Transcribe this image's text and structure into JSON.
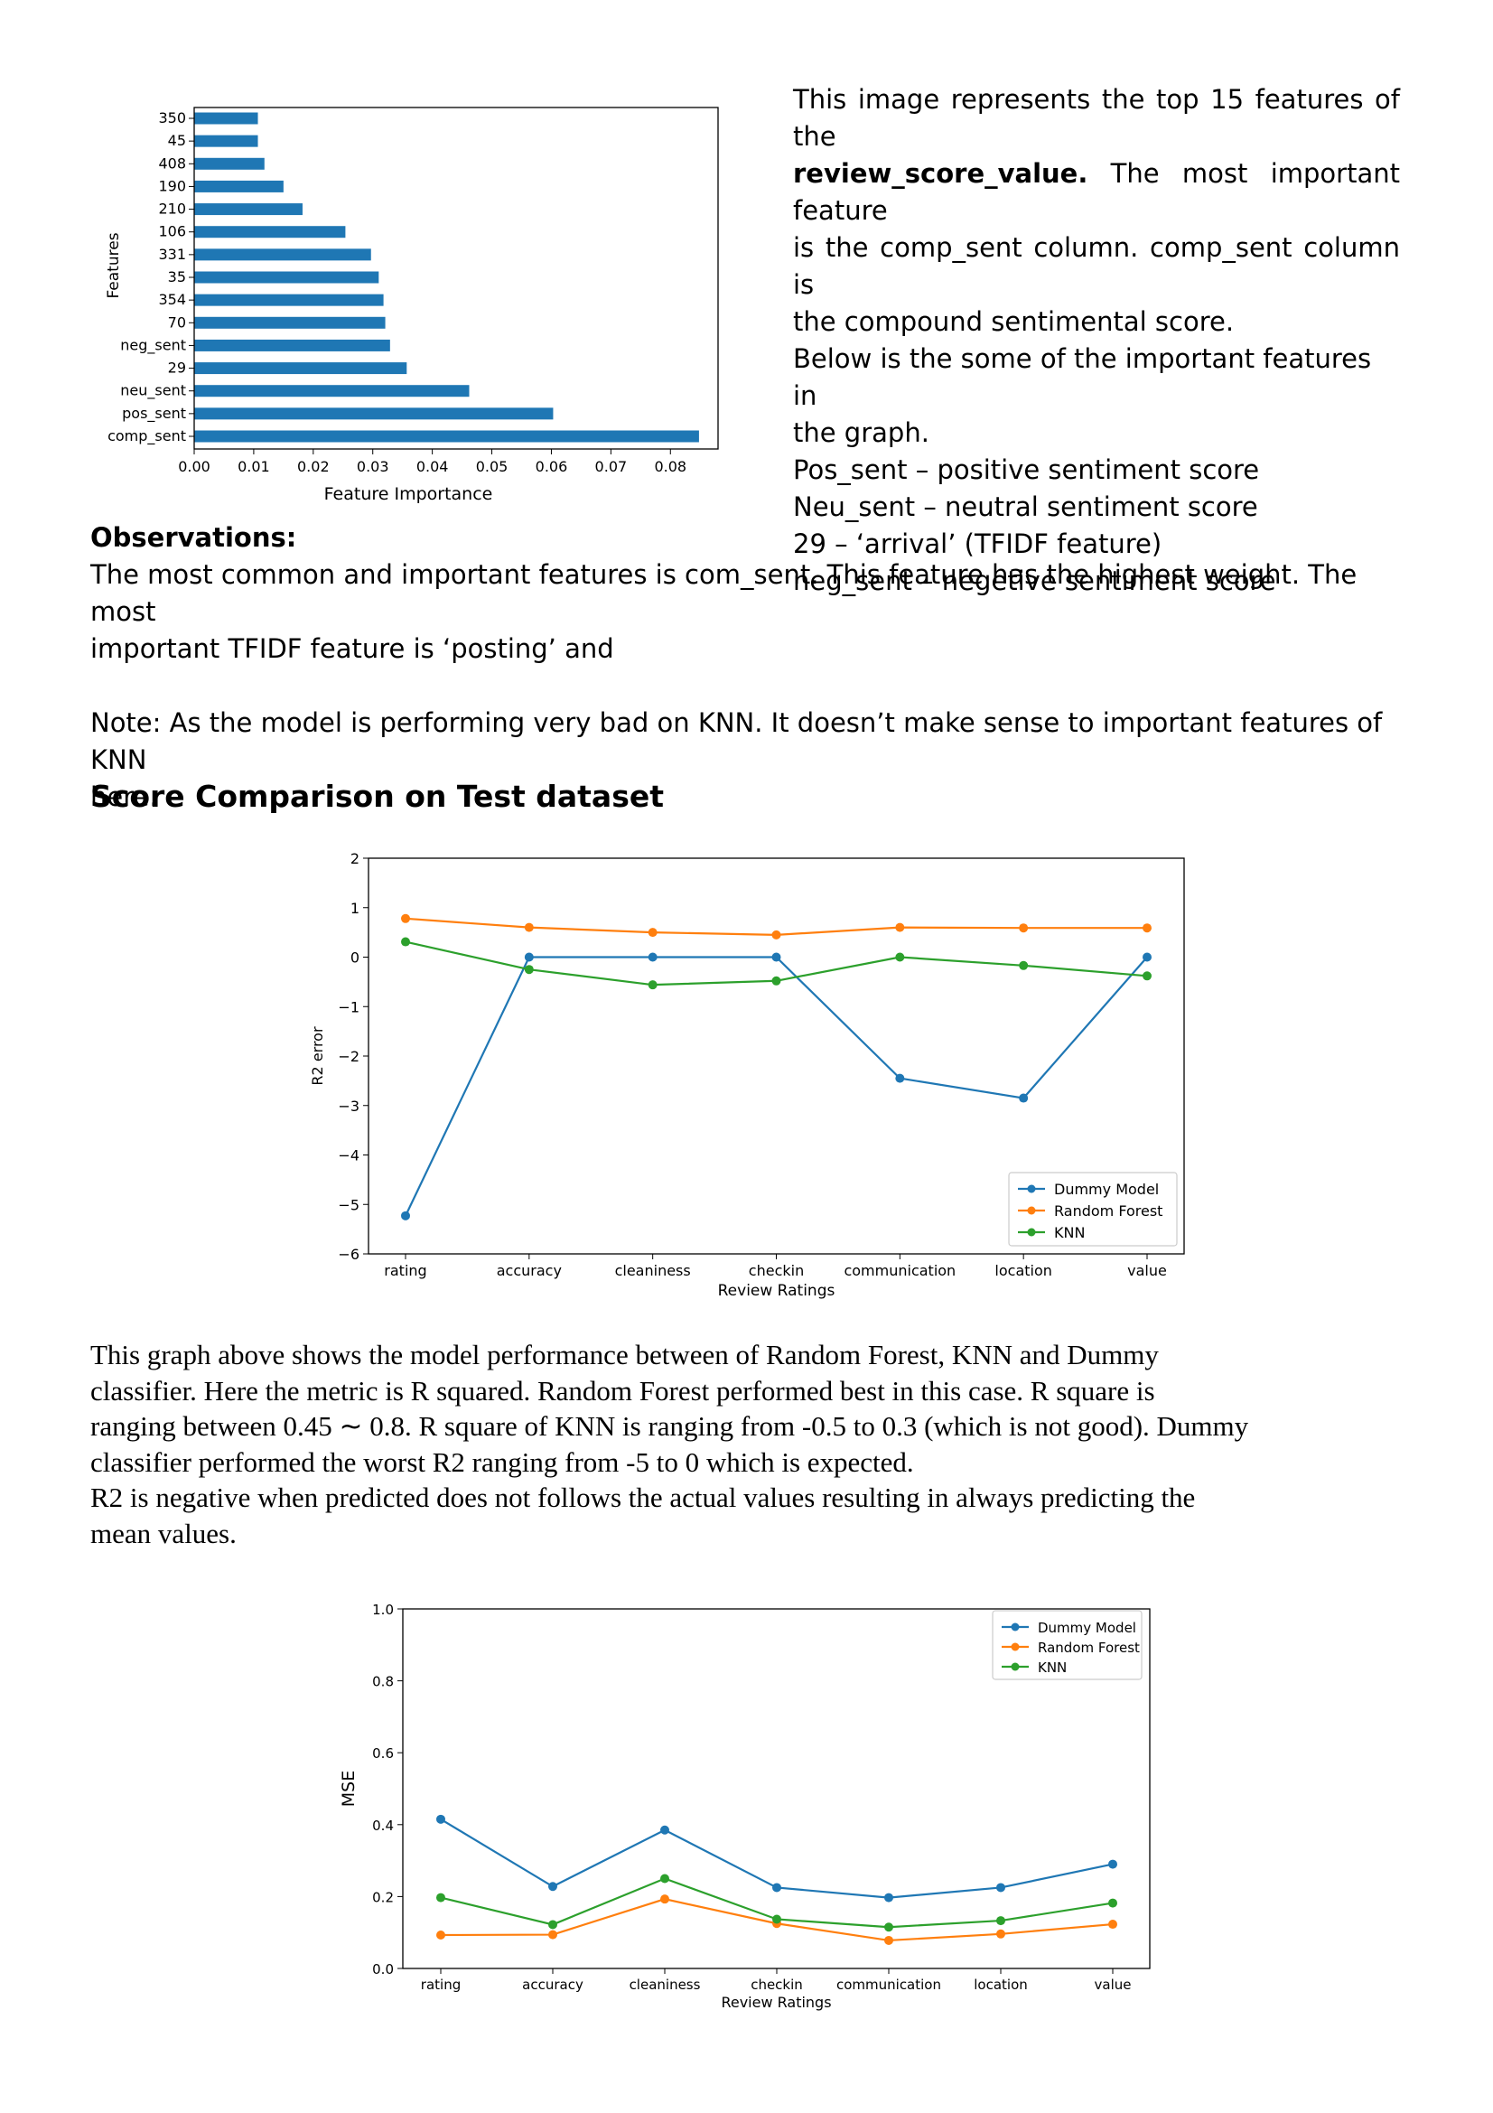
{
  "side_text": {
    "line1": "This image represents the top 15 features of the",
    "line2_bold": "review_score_value.",
    "line2_rest": " The most important feature",
    "line3": "is the comp_sent column. comp_sent column is",
    "line4": "the compound sentimental score.",
    "line5": "Below is the some of the important features in",
    "line6": "the graph.",
    "line7": "Pos_sent – positive sentiment score",
    "line8": "Neu_sent – neutral sentiment score",
    "line9": "29 – ‘arrival’ (TFIDF feature)",
    "line10": "neg_sent – negetive sentiment score"
  },
  "observations": {
    "heading": "Observations:",
    "line1": "The most common and important features is com_sent.  This feature has the highest weight. The most",
    "line2": "important TFIDF feature is ‘posting’ and",
    "note_line1": "Note: As the model is performing very bad on KNN. It doesn’t make sense to important features of KNN",
    "note_line2": "here."
  },
  "section_title": "Score Comparison on Test dataset",
  "paragraph": {
    "line1": "This graph above shows the model performance between of Random Forest, KNN and Dummy",
    "line2": "classifier. Here the metric is R squared. Random Forest performed best in this case. R square is",
    "line3": "ranging between 0.45 ∼ 0.8. R square of KNN is ranging from -0.5 to 0.3 (which is not good). Dummy",
    "line4": "classifier performed the worst R2 ranging from -5 to 0 which is expected.",
    "line5": "R2 is negative when predicted does not follows the actual values resulting in always predicting the",
    "line6": "mean values."
  },
  "colors": {
    "blue": "#1f77b4",
    "orange": "#ff7f0e",
    "green": "#2ca02c",
    "bar": "#1f77b4"
  },
  "chart_data": [
    {
      "type": "bar",
      "orientation": "horizontal",
      "categories": [
        "comp_sent",
        "pos_sent",
        "neu_sent",
        "29",
        "neg_sent",
        "70",
        "354",
        "35",
        "331",
        "106",
        "210",
        "190",
        "408",
        "45",
        "350"
      ],
      "values": [
        0.0848,
        0.0603,
        0.0462,
        0.0357,
        0.0329,
        0.0321,
        0.0318,
        0.031,
        0.0297,
        0.0254,
        0.0182,
        0.015,
        0.0118,
        0.0107,
        0.0107
      ],
      "xlabel": "Feature Importance",
      "ylabel": "Features",
      "xlim": [
        0,
        0.088
      ],
      "xticks": [
        "0.00",
        "0.01",
        "0.02",
        "0.03",
        "0.04",
        "0.05",
        "0.06",
        "0.07",
        "0.08"
      ]
    },
    {
      "type": "line",
      "categories": [
        "rating",
        "accuracy",
        "cleaniness",
        "checkin",
        "communication",
        "location",
        "value"
      ],
      "series": [
        {
          "name": "Dummy Model",
          "values": [
            -5.23,
            0.0,
            0.0,
            0.0,
            -2.45,
            -2.85,
            0.0
          ]
        },
        {
          "name": "Random Forest",
          "values": [
            0.78,
            0.6,
            0.5,
            0.45,
            0.6,
            0.59,
            0.59
          ]
        },
        {
          "name": "KNN",
          "values": [
            0.31,
            -0.25,
            -0.56,
            -0.48,
            0.0,
            -0.17,
            -0.38
          ]
        }
      ],
      "xlabel": "Review Ratings",
      "ylabel": "R2 error",
      "ylim": [
        -6,
        2
      ],
      "yticks": [
        "−6",
        "−5",
        "−4",
        "−3",
        "−2",
        "−1",
        "0",
        "1",
        "2"
      ],
      "legend": "bottom-right"
    },
    {
      "type": "line",
      "categories": [
        "rating",
        "accuracy",
        "cleaniness",
        "checkin",
        "communication",
        "location",
        "value"
      ],
      "series": [
        {
          "name": "Dummy Model",
          "values": [
            0.415,
            0.228,
            0.385,
            0.225,
            0.197,
            0.225,
            0.29
          ]
        },
        {
          "name": "Random Forest",
          "values": [
            0.093,
            0.094,
            0.193,
            0.125,
            0.078,
            0.096,
            0.123
          ]
        },
        {
          "name": "KNN",
          "values": [
            0.197,
            0.122,
            0.25,
            0.137,
            0.115,
            0.133,
            0.182
          ]
        }
      ],
      "xlabel": "Review Ratings",
      "ylabel": "MSE",
      "ylim": [
        0,
        1.0
      ],
      "yticks": [
        "0.0",
        "0.2",
        "0.4",
        "0.6",
        "0.8",
        "1.0"
      ],
      "legend": "top-right"
    }
  ]
}
